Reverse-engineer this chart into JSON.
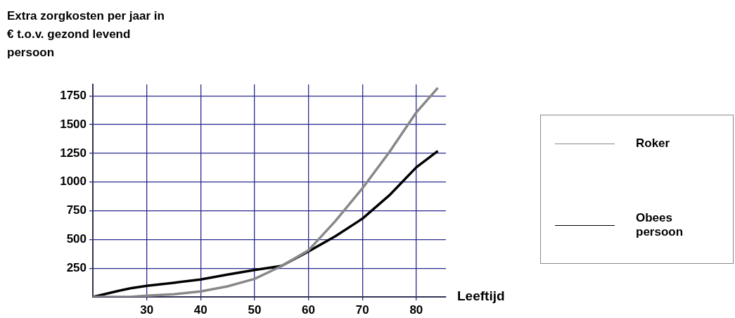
{
  "chart_data": {
    "type": "line",
    "ylabel": "Extra zorgkosten per jaar in € t.o.v. gezond levend persoon",
    "xlabel": "Leeftijd",
    "x": [
      20,
      25,
      27,
      30,
      35,
      40,
      45,
      50,
      55,
      60,
      65,
      70,
      75,
      80,
      84
    ],
    "series": [
      {
        "name": "Roker",
        "color": "#888888",
        "values": [
          0,
          0,
          0,
          10,
          23,
          47,
          92,
          157,
          268,
          405,
          661,
          945,
          1260,
          1606,
          1820
        ]
      },
      {
        "name": "Obees persoon",
        "color": "#000000",
        "values": [
          0,
          55,
          75,
          96,
          123,
          152,
          195,
          234,
          270,
          396,
          528,
          681,
          884,
          1128,
          1270
        ]
      }
    ],
    "xlim": [
      20,
      85.5
    ],
    "ylim": [
      0,
      1850
    ],
    "xticks": [
      30,
      40,
      50,
      60,
      70,
      80
    ],
    "yticks": [
      250,
      500,
      750,
      1000,
      1250,
      1500,
      1750
    ],
    "grid": true,
    "legend": "right",
    "marker": "none",
    "line_style": "solid"
  }
}
